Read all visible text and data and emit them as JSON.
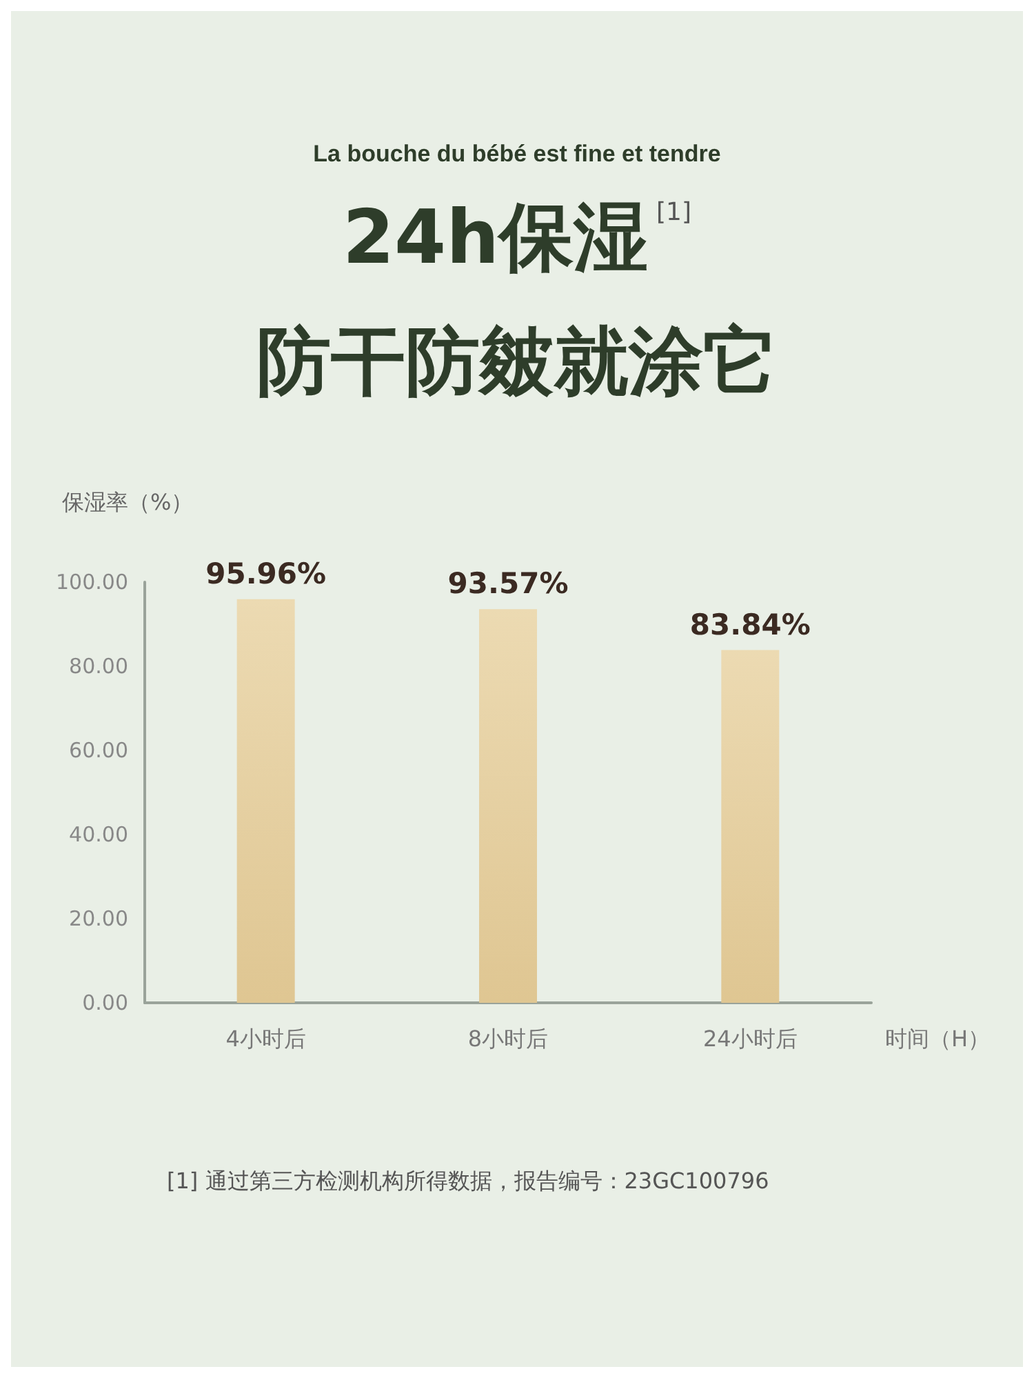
{
  "chart_data": {
    "type": "bar",
    "title": "24h保湿$^{[1]}$",
    "subtitle": "防干防皴就涂它",
    "ylabel": "保湿率（%）",
    "xlabel": "时间（H）",
    "categories": [
      "4小时后",
      "8小时后",
      "24小时后"
    ],
    "values": [
      95.96,
      93.57,
      83.84
    ],
    "value_labels": [
      "95.96%",
      "93.57%",
      "83.84%"
    ],
    "color": "#dfc692",
    "ylim": [
      0,
      100
    ],
    "yticks": [
      {
        "value": 0,
        "label": "0.00"
      },
      {
        "value": 20,
        "label": "20.00"
      },
      {
        "value": 40,
        "label": "40.00"
      },
      {
        "value": 60,
        "label": "60.00"
      },
      {
        "value": 80,
        "label": "80.00"
      },
      {
        "value": 100,
        "label": "100.00"
      }
    ],
    "grid": false,
    "annotations": [
      "La bouche du bébé est fine et tendre",
      "[1] 通过第三方检测机构所得数据，报告编号：23GC100796"
    ]
  }
}
